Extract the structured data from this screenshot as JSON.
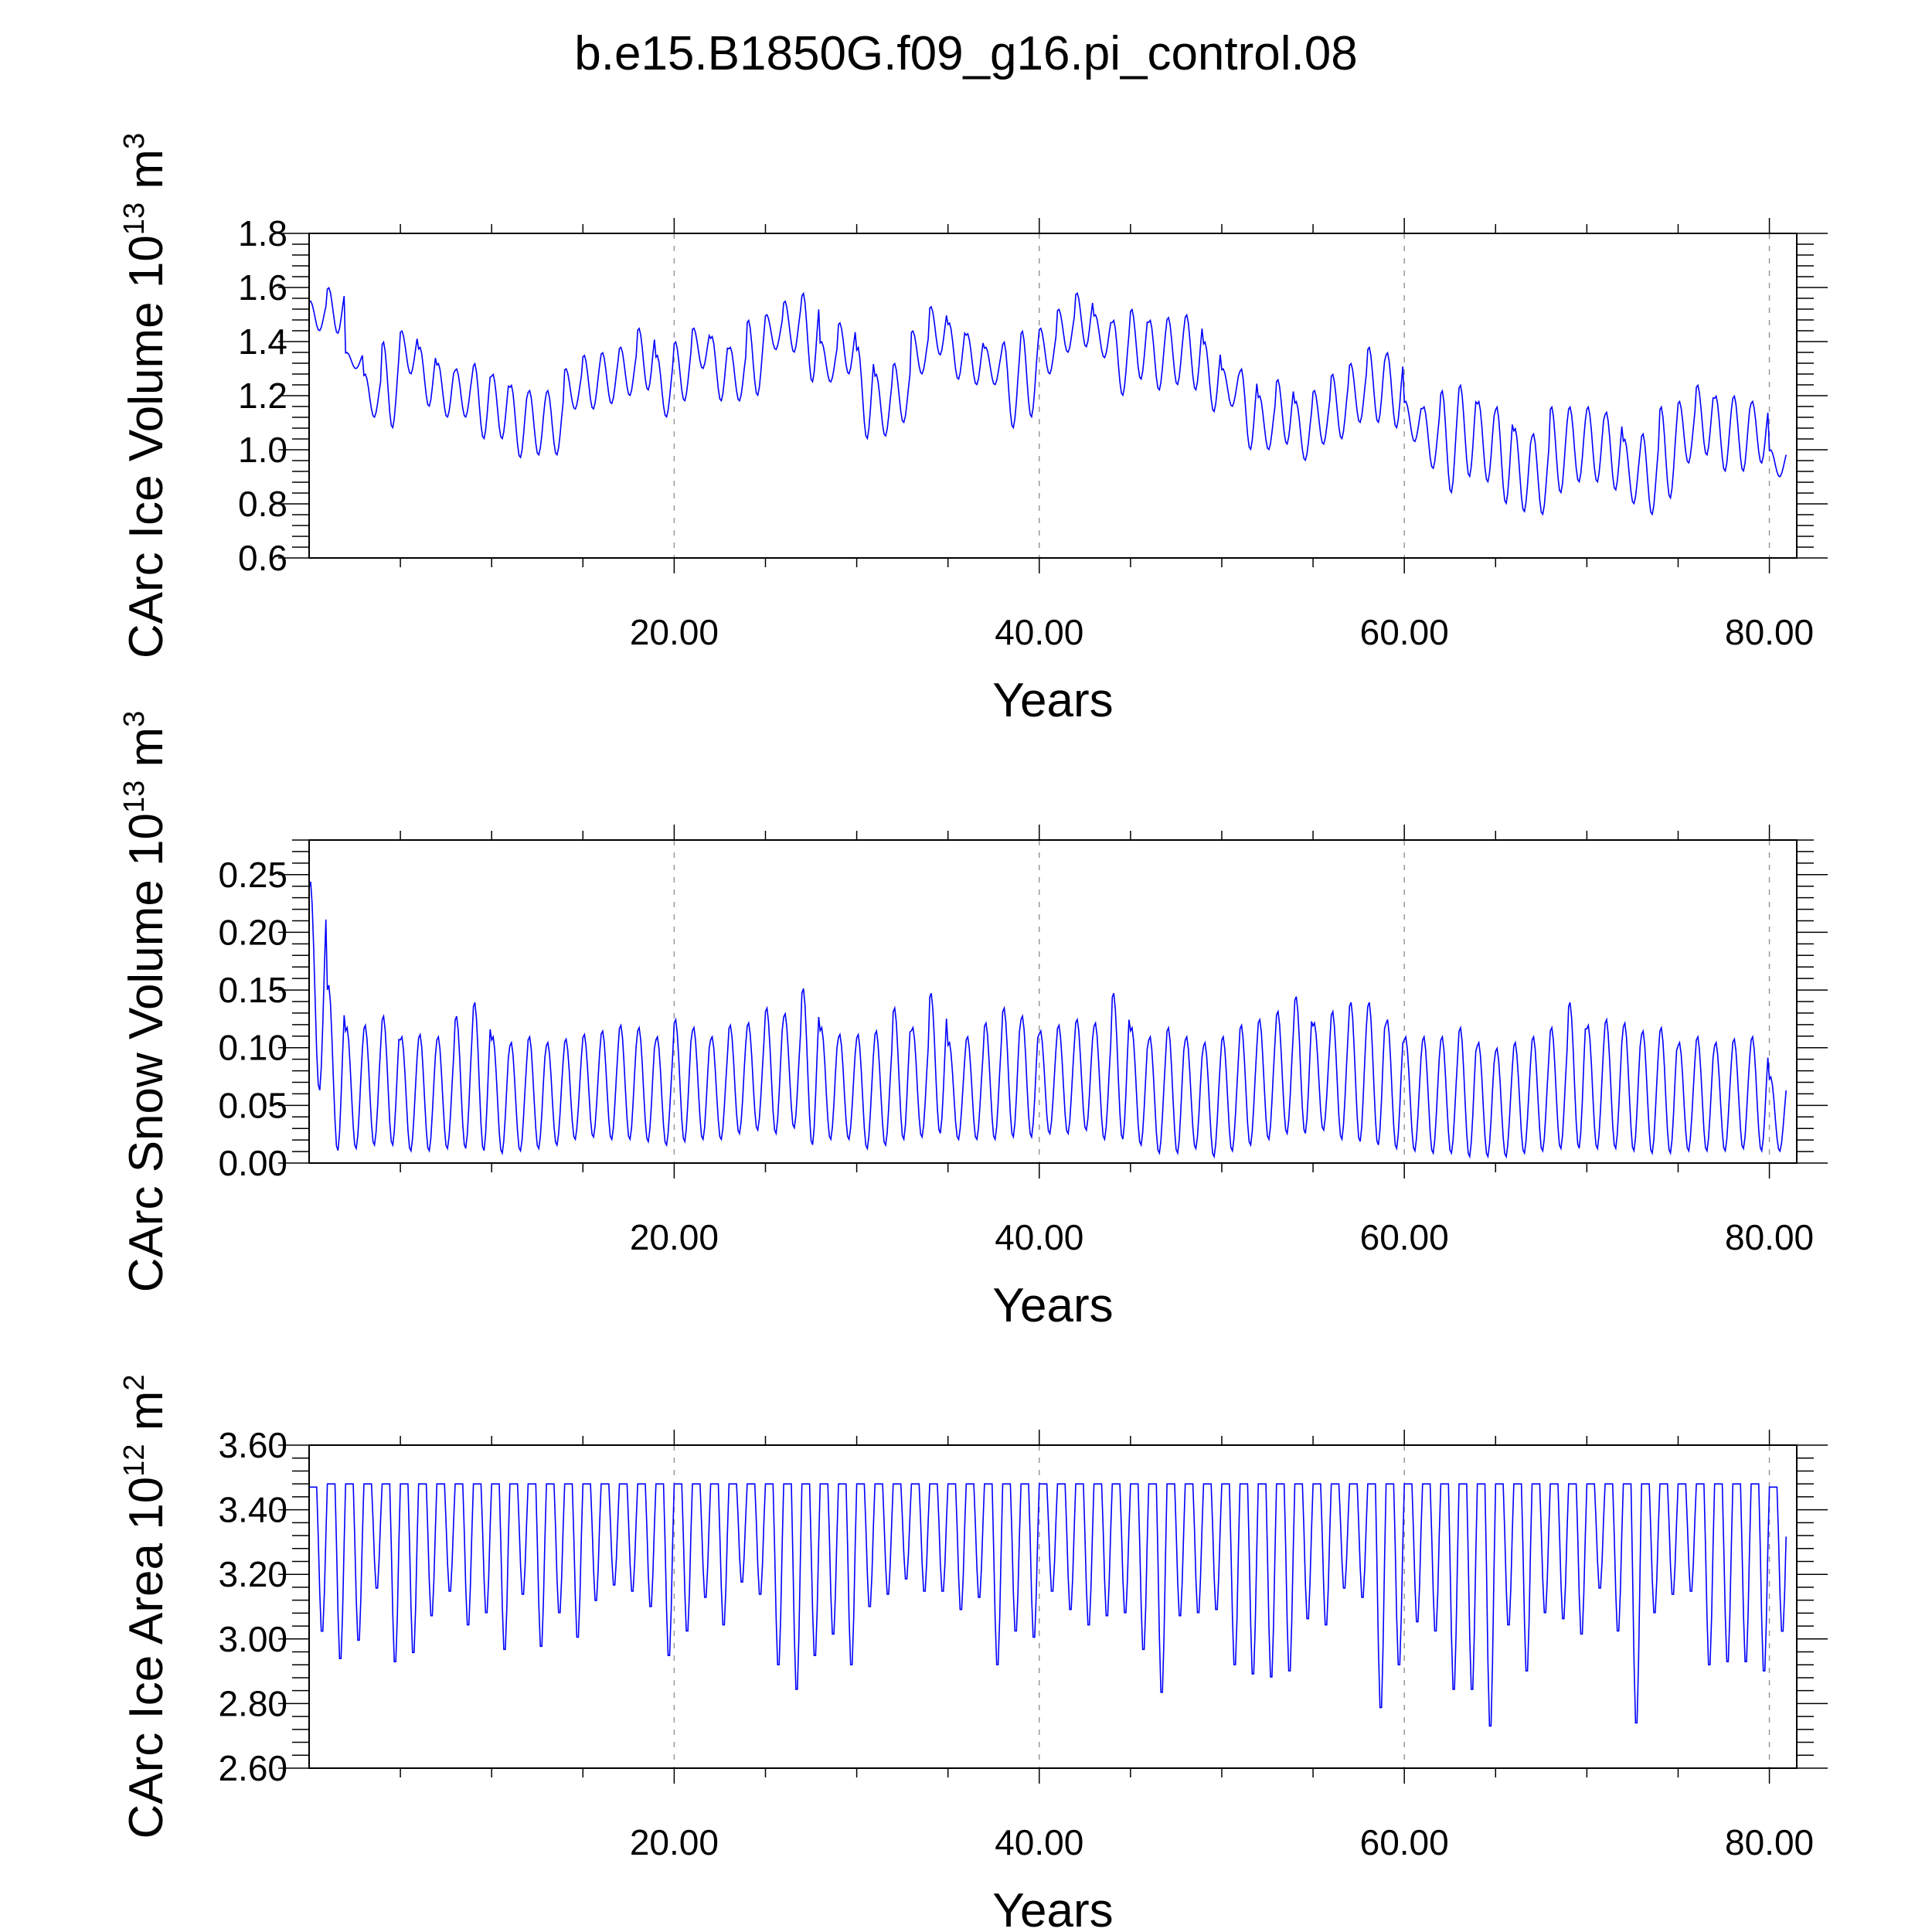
{
  "figure": {
    "title": "b.e15.B1850G.f09_g16.pi_control.08",
    "line_color": "#0000ff",
    "frame_color": "#000000",
    "grid_color": "#999999"
  },
  "chart_data": [
    {
      "type": "line",
      "xlabel": "Years",
      "ylabel_text": "CArc Ice Volume 10",
      "ylabel_exp": "13",
      "ylabel_unit": " m",
      "ylabel_unit_exp": "3",
      "xlim": [
        0,
        81.5
      ],
      "ylim": [
        0.6,
        1.8
      ],
      "xticks": [
        20,
        40,
        60,
        80
      ],
      "xtick_labels": [
        "20.00",
        "40.00",
        "60.00",
        "80.00"
      ],
      "yticks": [
        0.6,
        0.8,
        1.0,
        1.2,
        1.4,
        1.6,
        1.8
      ],
      "ytick_labels": [
        "0.6",
        "0.8",
        "1.0",
        "1.2",
        "1.4",
        "1.6",
        "1.8"
      ],
      "grid": "dashed vertical at x ticks",
      "series": [
        {
          "values_per_year": 12,
          "start_year": 0,
          "annual_max": [
            1.55,
            1.6,
            1.36,
            1.28,
            1.4,
            1.44,
            1.38,
            1.32,
            1.3,
            1.32,
            1.28,
            1.24,
            1.22,
            1.22,
            1.3,
            1.35,
            1.36,
            1.38,
            1.45,
            1.35,
            1.4,
            1.45,
            1.42,
            1.38,
            1.48,
            1.5,
            1.55,
            1.58,
            1.4,
            1.47,
            1.38,
            1.28,
            1.32,
            1.44,
            1.53,
            1.47,
            1.43,
            1.38,
            1.4,
            1.44,
            1.45,
            1.52,
            1.58,
            1.5,
            1.48,
            1.52,
            1.48,
            1.49,
            1.5,
            1.4,
            1.3,
            1.3,
            1.2,
            1.26,
            1.18,
            1.22,
            1.28,
            1.32,
            1.38,
            1.36,
            1.18,
            1.16,
            1.22,
            1.24,
            1.18,
            1.16,
            1.08,
            1.06,
            1.16,
            1.16,
            1.16,
            1.14,
            1.04,
            1.06,
            1.16,
            1.18,
            1.24,
            1.2,
            1.2,
            1.18,
            1.0
          ],
          "annual_min": [
            1.44,
            1.43,
            1.3,
            1.12,
            1.08,
            1.28,
            1.16,
            1.12,
            1.12,
            1.04,
            1.04,
            0.97,
            0.98,
            0.98,
            1.15,
            1.15,
            1.17,
            1.2,
            1.22,
            1.12,
            1.18,
            1.3,
            1.18,
            1.18,
            1.2,
            1.37,
            1.36,
            1.25,
            1.25,
            1.28,
            1.04,
            1.05,
            1.1,
            1.28,
            1.35,
            1.26,
            1.24,
            1.24,
            1.08,
            1.12,
            1.28,
            1.36,
            1.38,
            1.34,
            1.2,
            1.26,
            1.22,
            1.24,
            1.22,
            1.14,
            1.16,
            1.0,
            1.0,
            1.02,
            0.96,
            1.02,
            1.04,
            1.1,
            1.1,
            1.08,
            1.03,
            0.93,
            0.84,
            0.9,
            0.88,
            0.8,
            0.77,
            0.76,
            0.84,
            0.88,
            0.88,
            0.85,
            0.8,
            0.76,
            0.82,
            0.95,
            0.98,
            0.92,
            0.92,
            0.95,
            0.9
          ]
        }
      ]
    },
    {
      "type": "line",
      "xlabel": "Years",
      "ylabel_text": "CArc Snow Volume 10",
      "ylabel_exp": "13",
      "ylabel_unit": " m",
      "ylabel_unit_exp": "3",
      "xlim": [
        0,
        81.5
      ],
      "ylim": [
        0.0,
        0.28
      ],
      "xticks": [
        20,
        40,
        60,
        80
      ],
      "xtick_labels": [
        "20.00",
        "40.00",
        "60.00",
        "80.00"
      ],
      "yticks": [
        0.0,
        0.05,
        0.1,
        0.15,
        0.2,
        0.25
      ],
      "ytick_labels": [
        "0.00",
        "0.05",
        "0.10",
        "0.15",
        "0.20",
        "0.25"
      ],
      "grid": "dashed vertical at x ticks",
      "series": [
        {
          "values_per_year": 12,
          "start_year": 0,
          "annual_max": [
            0.245,
            0.155,
            0.118,
            0.12,
            0.128,
            0.11,
            0.112,
            0.11,
            0.128,
            0.14,
            0.11,
            0.105,
            0.11,
            0.105,
            0.108,
            0.112,
            0.115,
            0.12,
            0.118,
            0.11,
            0.125,
            0.118,
            0.11,
            0.12,
            0.122,
            0.135,
            0.13,
            0.152,
            0.118,
            0.112,
            0.112,
            0.115,
            0.135,
            0.118,
            0.148,
            0.105,
            0.11,
            0.122,
            0.135,
            0.128,
            0.115,
            0.12,
            0.125,
            0.122,
            0.148,
            0.118,
            0.11,
            0.118,
            0.11,
            0.105,
            0.11,
            0.12,
            0.125,
            0.132,
            0.145,
            0.122,
            0.132,
            0.14,
            0.14,
            0.125,
            0.11,
            0.11,
            0.11,
            0.118,
            0.105,
            0.1,
            0.105,
            0.11,
            0.118,
            0.14,
            0.12,
            0.125,
            0.122,
            0.115,
            0.118,
            0.105,
            0.11,
            0.105,
            0.108,
            0.11,
            0.075
          ],
          "annual_min": [
            0.062,
            0.01,
            0.012,
            0.015,
            0.015,
            0.01,
            0.01,
            0.012,
            0.012,
            0.01,
            0.008,
            0.01,
            0.012,
            0.015,
            0.02,
            0.022,
            0.02,
            0.02,
            0.018,
            0.015,
            0.018,
            0.02,
            0.02,
            0.025,
            0.028,
            0.025,
            0.03,
            0.015,
            0.02,
            0.02,
            0.012,
            0.015,
            0.02,
            0.022,
            0.025,
            0.02,
            0.02,
            0.02,
            0.022,
            0.022,
            0.025,
            0.025,
            0.028,
            0.02,
            0.02,
            0.015,
            0.008,
            0.008,
            0.012,
            0.005,
            0.01,
            0.015,
            0.02,
            0.025,
            0.025,
            0.028,
            0.02,
            0.018,
            0.015,
            0.012,
            0.01,
            0.008,
            0.008,
            0.005,
            0.005,
            0.005,
            0.008,
            0.01,
            0.012,
            0.012,
            0.012,
            0.012,
            0.01,
            0.008,
            0.008,
            0.01,
            0.01,
            0.01,
            0.012,
            0.01,
            0.01
          ]
        }
      ]
    },
    {
      "type": "line",
      "xlabel": "Years",
      "ylabel_text": "CArc Ice Area 10",
      "ylabel_exp": "12",
      "ylabel_unit": " m",
      "ylabel_unit_exp": "2",
      "xlim": [
        0,
        81.5
      ],
      "ylim": [
        2.6,
        3.6
      ],
      "xticks": [
        20,
        40,
        60,
        80
      ],
      "xtick_labels": [
        "20.00",
        "40.00",
        "60.00",
        "80.00"
      ],
      "yticks": [
        2.6,
        2.8,
        3.0,
        3.2,
        3.4,
        3.6
      ],
      "ytick_labels": [
        "2.60",
        "2.80",
        "3.00",
        "3.20",
        "3.40",
        "3.60"
      ],
      "grid": "dashed vertical at x ticks",
      "series": [
        {
          "values_per_year": 12,
          "start_year": 0,
          "annual_max": [
            3.47,
            3.48,
            3.48,
            3.48,
            3.48,
            3.48,
            3.48,
            3.48,
            3.48,
            3.48,
            3.48,
            3.48,
            3.48,
            3.48,
            3.48,
            3.48,
            3.48,
            3.48,
            3.48,
            3.48,
            3.48,
            3.48,
            3.48,
            3.48,
            3.48,
            3.48,
            3.48,
            3.48,
            3.48,
            3.48,
            3.48,
            3.48,
            3.48,
            3.48,
            3.48,
            3.48,
            3.48,
            3.48,
            3.48,
            3.48,
            3.48,
            3.48,
            3.48,
            3.48,
            3.48,
            3.48,
            3.48,
            3.48,
            3.48,
            3.48,
            3.48,
            3.48,
            3.48,
            3.48,
            3.48,
            3.48,
            3.48,
            3.48,
            3.48,
            3.48,
            3.48,
            3.48,
            3.48,
            3.48,
            3.48,
            3.48,
            3.48,
            3.48,
            3.48,
            3.48,
            3.48,
            3.48,
            3.48,
            3.48,
            3.48,
            3.48,
            3.48,
            3.48,
            3.48,
            3.48,
            3.47
          ],
          "annual_min": [
            3.0,
            2.91,
            2.97,
            3.14,
            2.9,
            2.93,
            3.05,
            3.13,
            3.02,
            3.06,
            2.94,
            3.12,
            2.95,
            3.06,
            2.98,
            3.1,
            3.15,
            3.13,
            3.08,
            2.92,
            3.0,
            3.11,
            3.02,
            3.16,
            3.12,
            2.89,
            2.81,
            2.92,
            2.99,
            2.89,
            3.08,
            3.12,
            3.17,
            3.13,
            3.13,
            3.07,
            3.11,
            2.89,
            3.0,
            2.98,
            3.13,
            3.07,
            3.02,
            3.05,
            3.06,
            2.94,
            2.8,
            3.05,
            3.06,
            3.07,
            2.89,
            2.86,
            2.85,
            2.87,
            3.04,
            3.02,
            3.14,
            3.11,
            2.75,
            2.89,
            3.03,
            3.0,
            2.81,
            2.81,
            2.69,
            3.02,
            2.87,
            3.06,
            3.04,
            2.99,
            3.14,
            3.0,
            2.7,
            3.06,
            3.12,
            3.13,
            2.89,
            2.9,
            2.9,
            2.87,
            3.0
          ]
        }
      ]
    }
  ]
}
